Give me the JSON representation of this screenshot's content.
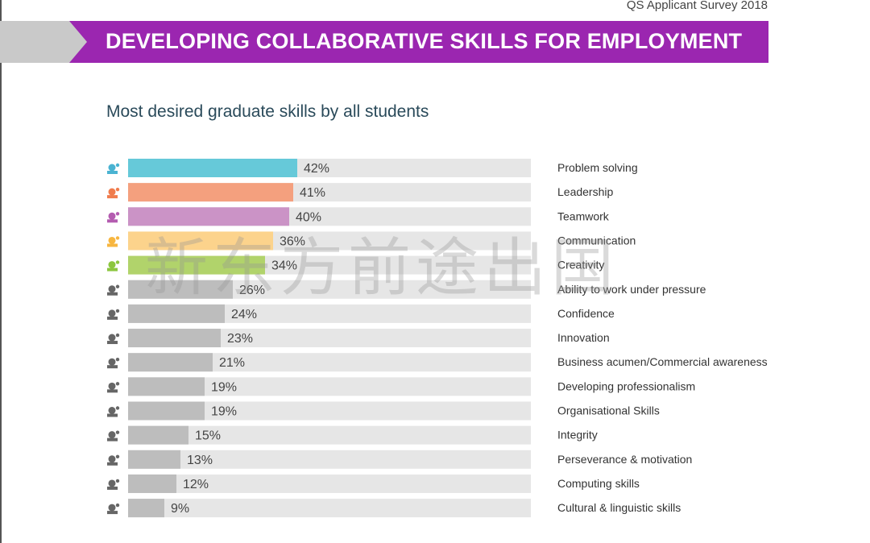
{
  "header": {
    "survey_label": "QS Applicant Survey 2018",
    "banner_title": "DEVELOPING COLLABORATIVE SKILLS FOR EMPLOYMENT"
  },
  "watermark": "新东方前途出国",
  "colors": {
    "banner": "#9b26b0",
    "track": "#e6e6e6",
    "grey_bar": "#bdbdbd"
  },
  "chart_data": {
    "type": "bar",
    "orientation": "horizontal",
    "title": "Most desired graduate skills by all students",
    "xlim": [
      0,
      100
    ],
    "grid": false,
    "categories": [
      "Problem solving",
      "Leadership",
      "Teamwork",
      "Communication",
      "Creativity",
      "Ability to work under pressure",
      "Confidence",
      "Innovation",
      "Business acumen/Commercial awareness",
      "Developing professionalism",
      "Organisational Skills",
      "Integrity",
      "Perseverance & motivation",
      "Computing skills",
      "Cultural & linguistic skills"
    ],
    "values": [
      42,
      41,
      40,
      36,
      34,
      26,
      24,
      23,
      21,
      19,
      19,
      15,
      13,
      12,
      9
    ],
    "value_labels": [
      "42%",
      "41%",
      "40%",
      "36%",
      "34%",
      "26%",
      "24%",
      "23%",
      "21%",
      "19%",
      "19%",
      "15%",
      "13%",
      "12%",
      "9%"
    ],
    "bar_colors": [
      "#66c9d9",
      "#f4a07e",
      "#cb93c6",
      "#fcd38c",
      "#b1d36b",
      "#bdbdbd",
      "#bdbdbd",
      "#bdbdbd",
      "#bdbdbd",
      "#bdbdbd",
      "#bdbdbd",
      "#bdbdbd",
      "#bdbdbd",
      "#bdbdbd",
      "#bdbdbd"
    ],
    "icons": [
      "puzzle-head-icon",
      "leader-icon",
      "team-icon",
      "speech-bubbles-icon",
      "palette-icon",
      "pressure-icon",
      "confidence-icon",
      "lightbulb-icon",
      "business-icon",
      "handshake-icon",
      "pie-icon",
      "scales-icon",
      "runner-icon",
      "laptop-icon",
      "theatre-masks-icon"
    ],
    "icon_colors": [
      "#4ab3d2",
      "#f07c4d",
      "#b45cb0",
      "#f7b640",
      "#8cc63f",
      "#666666",
      "#666666",
      "#666666",
      "#666666",
      "#666666",
      "#666666",
      "#666666",
      "#666666",
      "#666666",
      "#666666"
    ]
  }
}
